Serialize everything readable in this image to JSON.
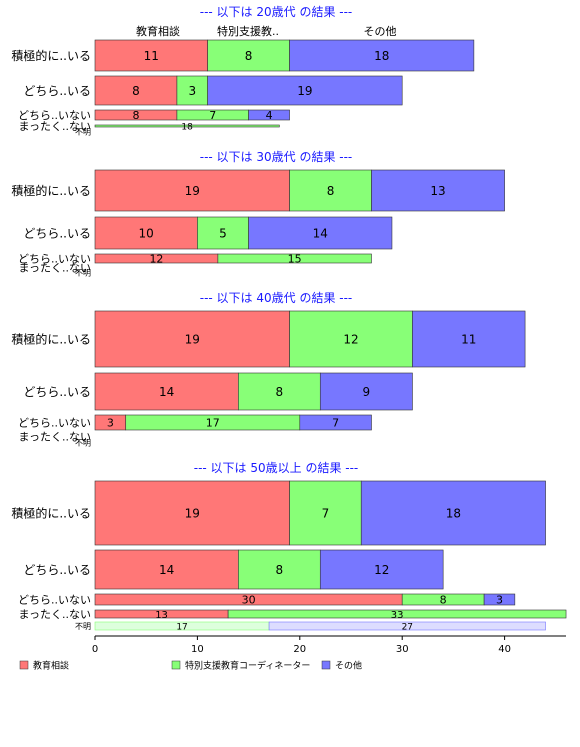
{
  "chart_data": {
    "type": "bar",
    "orientation": "horizontal",
    "stacked": true,
    "series": [
      {
        "name": "教育相談",
        "color": "#ff7777"
      },
      {
        "name": "特別支援教育コーディネーター",
        "color": "#88ff77"
      },
      {
        "name": "その他",
        "color": "#7777ff"
      }
    ],
    "column_headers": [
      "教育相談",
      "特別支援教..",
      "その他"
    ],
    "groups": [
      {
        "title": "--- 以下は 20歳代 の結果 ---",
        "rows": [
          {
            "label": "積極的に..いる",
            "values": [
              11,
              8,
              18
            ]
          },
          {
            "label": "どちら..いる",
            "values": [
              8,
              3,
              19
            ]
          },
          {
            "label": "どちら..いない",
            "values": [
              8,
              7,
              4
            ]
          },
          {
            "label": "まったく..ない",
            "values": [
              0,
              18,
              0
            ]
          },
          {
            "label": "不明",
            "values": [
              0,
              0,
              0
            ]
          }
        ]
      },
      {
        "title": "--- 以下は 30歳代 の結果 ---",
        "rows": [
          {
            "label": "積極的に..いる",
            "values": [
              19,
              8,
              13
            ]
          },
          {
            "label": "どちら..いる",
            "values": [
              10,
              5,
              14
            ]
          },
          {
            "label": "どちら..いない",
            "values": [
              12,
              15,
              0
            ]
          },
          {
            "label": "まったく..ない",
            "values": [
              0,
              0,
              0
            ]
          },
          {
            "label": "不明",
            "values": [
              0,
              0,
              0
            ]
          }
        ]
      },
      {
        "title": "--- 以下は 40歳代 の結果 ---",
        "rows": [
          {
            "label": "積極的に..いる",
            "values": [
              19,
              12,
              11
            ]
          },
          {
            "label": "どちら..いる",
            "values": [
              14,
              8,
              9
            ]
          },
          {
            "label": "どちら..いない",
            "values": [
              3,
              17,
              7
            ]
          },
          {
            "label": "まったく..ない",
            "values": [
              0,
              0,
              0
            ]
          },
          {
            "label": "不明",
            "values": [
              0,
              0,
              0
            ]
          }
        ]
      },
      {
        "title": "--- 以下は 50歳以上 の結果 ---",
        "rows": [
          {
            "label": "積極的に..いる",
            "values": [
              19,
              7,
              18
            ]
          },
          {
            "label": "どちら..いる",
            "values": [
              14,
              8,
              12
            ]
          },
          {
            "label": "どちら..いない",
            "values": [
              30,
              8,
              3
            ]
          },
          {
            "label": "まったく..ない",
            "values": [
              13,
              33,
              0
            ]
          },
          {
            "label": "不明",
            "values": [
              0,
              17,
              27
            ]
          }
        ]
      }
    ],
    "xlim": [
      0,
      46
    ],
    "xticks": [
      0,
      10,
      20,
      30,
      40
    ],
    "grid": false,
    "legend_position": "bottom"
  }
}
